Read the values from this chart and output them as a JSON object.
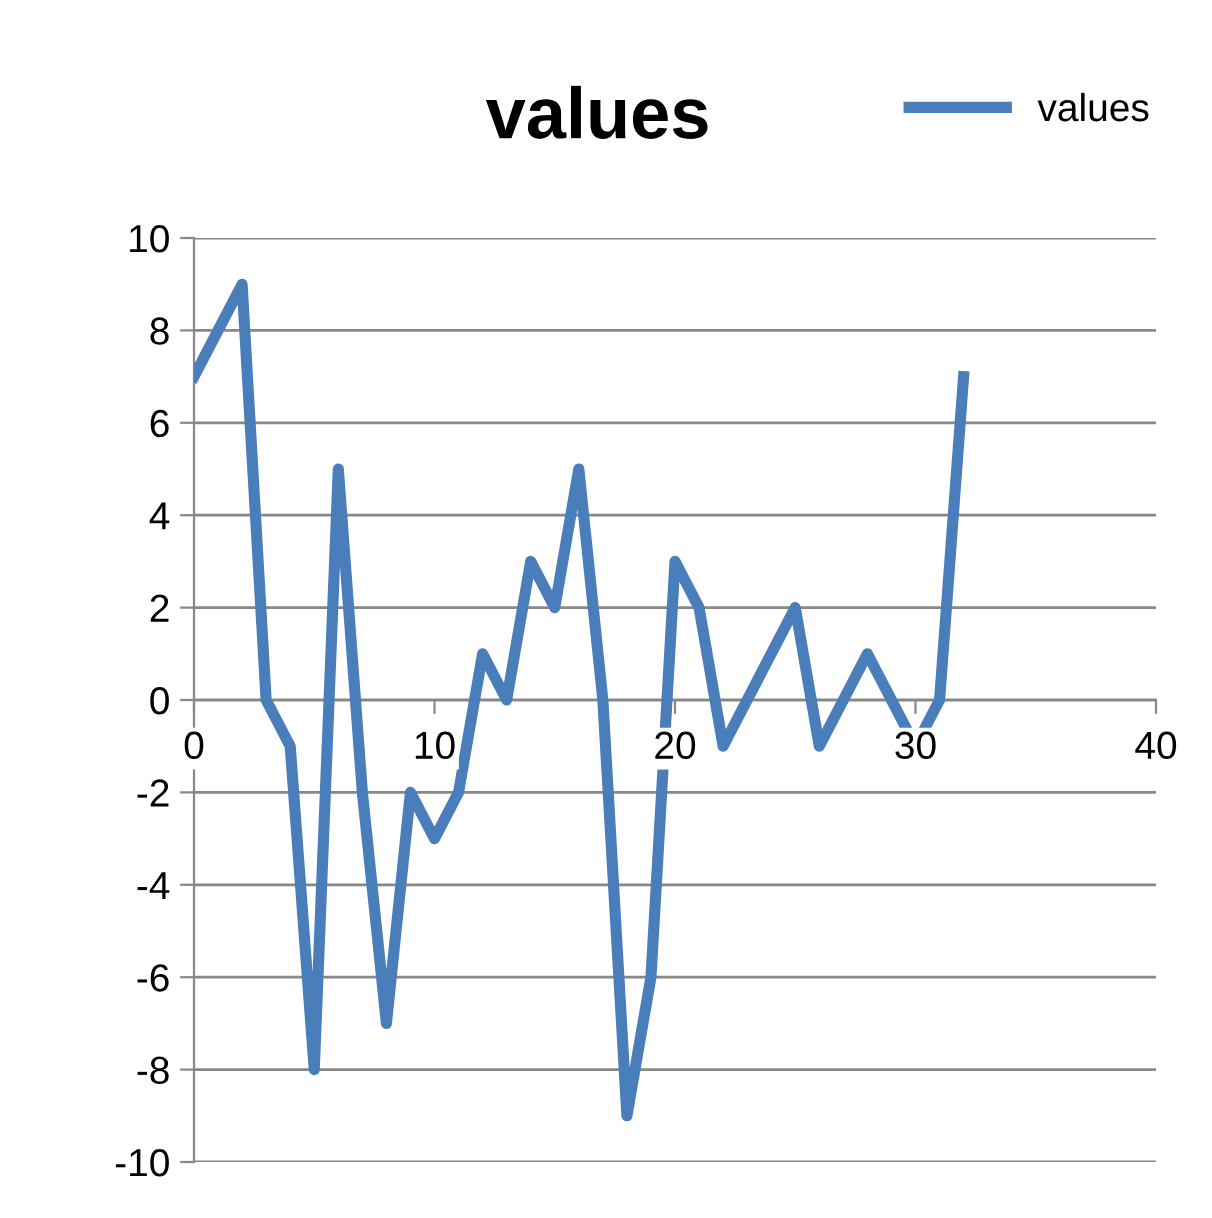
{
  "chart_data": {
    "type": "line",
    "title": "values",
    "x": [
      0,
      1,
      2,
      3,
      4,
      5,
      6,
      7,
      8,
      9,
      10,
      11,
      12,
      13,
      14,
      15,
      16,
      17,
      18,
      19,
      20,
      21,
      22,
      23,
      24,
      25,
      26,
      27,
      28,
      29,
      30,
      31,
      32
    ],
    "series": [
      {
        "name": "values",
        "color": "#4a7ebb",
        "values": [
          7,
          8,
          9,
          0,
          -1,
          -8,
          5,
          -2,
          -7,
          -2,
          -3,
          -2,
          1,
          0,
          3,
          2,
          5,
          0,
          -9,
          -6,
          3,
          2,
          -1,
          0,
          1,
          2,
          -1,
          0,
          1,
          0,
          -1,
          0,
          7
        ]
      }
    ],
    "xlim": [
      0,
      40
    ],
    "xticks": [
      0,
      10,
      20,
      30,
      40
    ],
    "ylim": [
      -10,
      10
    ],
    "yticks": [
      -10,
      -8,
      -6,
      -4,
      -2,
      0,
      2,
      4,
      6,
      8,
      10
    ],
    "grid": "y",
    "legend": "top right",
    "marker": "none",
    "line_style": "solid"
  }
}
